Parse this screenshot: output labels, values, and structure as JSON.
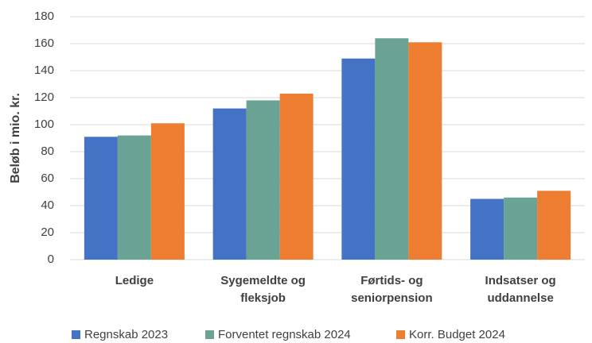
{
  "chart_data": {
    "type": "bar",
    "ylabel": "Beløb i mio. kr.",
    "categories": [
      "Ledige",
      "Sygemeldte og fleksjob",
      "Førtids- og seniorpension",
      "Indsatser og uddannelse"
    ],
    "series": [
      {
        "name": "Regnskab 2023",
        "color": "#4472c4",
        "values": [
          91,
          112,
          149,
          45
        ]
      },
      {
        "name": "Forventet regnskab 2024",
        "color": "#6aa394",
        "values": [
          92,
          118,
          164,
          46
        ]
      },
      {
        "name": "Korr. Budget 2024",
        "color": "#ed7d31",
        "values": [
          101,
          123,
          161,
          51
        ]
      }
    ],
    "ylim": [
      0,
      180
    ],
    "yticks": [
      0,
      20,
      40,
      60,
      80,
      100,
      120,
      140,
      160,
      180
    ],
    "grid": true,
    "legend": "bottom"
  }
}
